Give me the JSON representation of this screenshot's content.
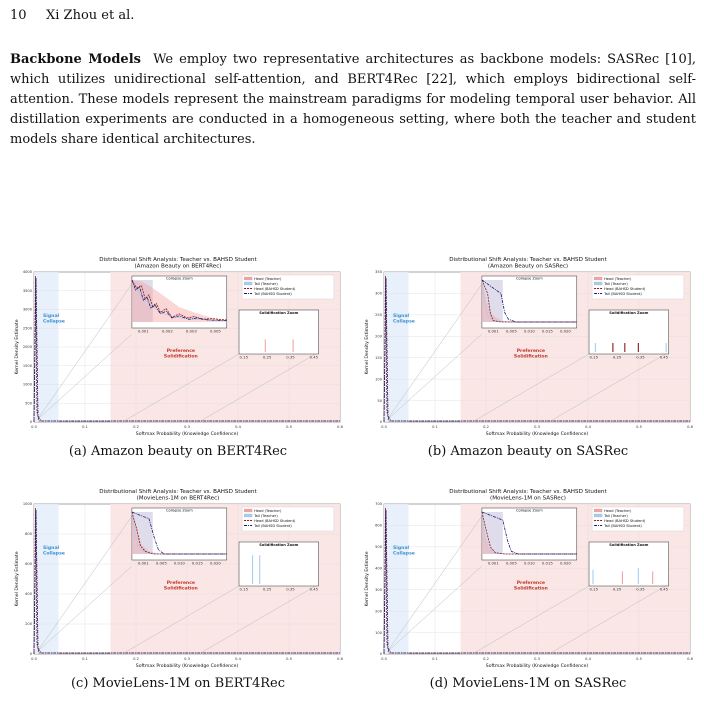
{
  "header": {
    "page_number": "10",
    "authors": "Xi Zhou et al."
  },
  "paragraph": {
    "heading": "Backbone Models",
    "text": "We employ two representative architectures as backbone models: SASRec [10], which utilizes unidirectional self-attention, and BERT4Rec [22], which employs bidirectional self-attention. These models represent the mainstream paradigms for modeling temporal user behavior. All distillation experiments are conducted in a homogeneous setting, where both the teacher and student models share identical architectures."
  },
  "colors": {
    "head_teacher": "#f4a3a3",
    "tail_teacher": "#a9cdef",
    "head_student": "#8b1a1a",
    "tail_student": "#1a1a6e",
    "signal_text": "#3a8fd0",
    "preference_text": "#c0392b"
  },
  "figures": [
    {
      "id": "a",
      "caption": "(a) Amazon beauty on BERT4Rec",
      "title_line1": "Distributional Shift Analysis: Teacher vs. BAHSD Student",
      "title_line2": "(Amazon Beauty on BERT4Rec)",
      "chart_data": {
        "type": "line",
        "xlabel": "Softmax Probability (Knowledge Confidence)",
        "ylabel": "Kernel Density Estimate",
        "x_ticks": [
          "0.0",
          "0.1",
          "0.2",
          "0.3",
          "0.4",
          "0.5",
          "0.6"
        ],
        "y_ticks": [
          "0",
          "500",
          "1000",
          "1500",
          "2000",
          "2500",
          "3000",
          "3500",
          "4000"
        ],
        "legend": [
          "Head (Teacher)",
          "Tail (Teacher)",
          "Head (BAHSD Student)",
          "Tail (BAHSD Student)"
        ],
        "annotations": {
          "signal": [
            "Signal",
            "Collapse"
          ],
          "preference": [
            "Preference",
            "Solidification"
          ]
        },
        "inset_collapse": {
          "title": "Collapse Zoom",
          "x_ticks": [
            "0.001",
            "0.002",
            "0.003",
            "0.005"
          ]
        },
        "inset_solid": {
          "title": "Solidification Zoom",
          "x_ticks": [
            "0.15",
            "0.25",
            "0.35",
            "0.45"
          ]
        }
      }
    },
    {
      "id": "b",
      "caption": "(b) Amazon beauty on SASRec",
      "title_line1": "Distributional Shift Analysis: Teacher vs. BAHSD Student",
      "title_line2": "(Amazon Beauty on SASRec)",
      "chart_data": {
        "type": "line",
        "xlabel": "Softmax Probability (Knowledge Confidence)",
        "ylabel": "Kernel Density Estimate",
        "x_ticks": [
          "0.0",
          "0.1",
          "0.2",
          "0.3",
          "0.4",
          "0.5",
          "0.6"
        ],
        "y_ticks": [
          "0",
          "50",
          "100",
          "150",
          "200",
          "250",
          "300",
          "350"
        ],
        "legend": [
          "Head (Teacher)",
          "Tail (Teacher)",
          "Head (BAHSD Student)",
          "Tail (BAHSD Student)"
        ],
        "annotations": {
          "signal": [
            "Signal",
            "Collapse"
          ],
          "preference": [
            "Preference",
            "Solidification"
          ]
        },
        "inset_collapse": {
          "title": "Collapse Zoom",
          "x_ticks": [
            "0.001",
            "0.005",
            "0.010",
            "0.015",
            "0.020"
          ]
        },
        "inset_solid": {
          "title": "Solidification Zoom",
          "x_ticks": [
            "0.15",
            "0.25",
            "0.35",
            "0.45"
          ]
        }
      }
    },
    {
      "id": "c",
      "caption": "(c) MovieLens-1M on BERT4Rec",
      "title_line1": "Distributional Shift Analysis: Teacher vs. BAHSD Student",
      "title_line2": "(MovieLens-1M on BERT4Rec)",
      "chart_data": {
        "type": "line",
        "xlabel": "Softmax Probability (Knowledge Confidence)",
        "ylabel": "Kernel Density Estimate",
        "x_ticks": [
          "0.0",
          "0.1",
          "0.2",
          "0.3",
          "0.4",
          "0.5",
          "0.6"
        ],
        "y_ticks": [
          "0",
          "200",
          "400",
          "600",
          "800",
          "1000"
        ],
        "legend": [
          "Head (Teacher)",
          "Tail (Teacher)",
          "Head (BAHSD Student)",
          "Tail (BAHSD Student)"
        ],
        "annotations": {
          "signal": [
            "Signal",
            "Collapse"
          ],
          "preference": [
            "Preference",
            "Solidification"
          ]
        },
        "inset_collapse": {
          "title": "Collapse Zoom",
          "x_ticks": [
            "0.001",
            "0.005",
            "0.010",
            "0.015",
            "0.020"
          ]
        },
        "inset_solid": {
          "title": "Solidification Zoom",
          "x_ticks": [
            "0.15",
            "0.25",
            "0.35",
            "0.45"
          ]
        }
      }
    },
    {
      "id": "d",
      "caption": "(d) MovieLens-1M on SASRec",
      "title_line1": "Distributional Shift Analysis: Teacher vs. BAHSD Student",
      "title_line2": "(MovieLens-1M on SASRec)",
      "chart_data": {
        "type": "line",
        "xlabel": "Softmax Probability (Knowledge Confidence)",
        "ylabel": "Kernel Density Estimate",
        "x_ticks": [
          "0.0",
          "0.1",
          "0.2",
          "0.3",
          "0.4",
          "0.5",
          "0.6"
        ],
        "y_ticks": [
          "0",
          "100",
          "200",
          "300",
          "400",
          "500",
          "600",
          "700"
        ],
        "legend": [
          "Head (Teacher)",
          "Tail (Teacher)",
          "Head (BAHSD Student)",
          "Tail (BAHSD Student)"
        ],
        "annotations": {
          "signal": [
            "Signal",
            "Collapse"
          ],
          "preference": [
            "Preference",
            "Solidification"
          ]
        },
        "inset_collapse": {
          "title": "Collapse Zoom",
          "x_ticks": [
            "0.001",
            "0.005",
            "0.010",
            "0.015",
            "0.020"
          ]
        },
        "inset_solid": {
          "title": "Solidification Zoom",
          "x_ticks": [
            "0.15",
            "0.25",
            "0.35",
            "0.45"
          ]
        }
      }
    }
  ]
}
